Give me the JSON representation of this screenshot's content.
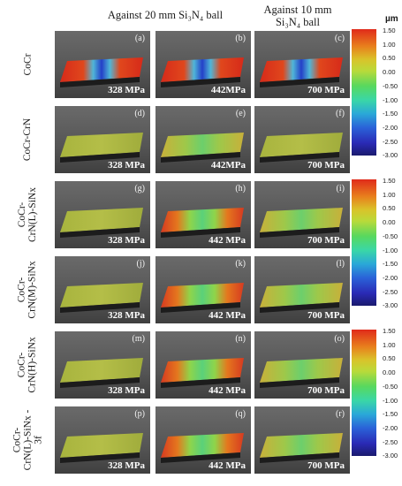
{
  "headers": {
    "col1": "Against 20 mm Si₃N₄ ball",
    "col2_line1": "Against 10 mm",
    "col2_line2": "Si₃N₄ ball"
  },
  "unit": "µm",
  "rows": [
    {
      "label_lines": [
        "CoCr"
      ]
    },
    {
      "label_lines": [
        "CoCr-CrN"
      ]
    },
    {
      "label_lines": [
        "CoCr-",
        "CrN(L)-SiNx"
      ]
    },
    {
      "label_lines": [
        "CoCr-",
        "CrN(M)-SiNx"
      ]
    },
    {
      "label_lines": [
        "CoCr-",
        "CrN(H)-SiNx"
      ]
    },
    {
      "label_lines": [
        "CoCr-",
        "CrN(L)-SiNx -",
        "3f"
      ]
    }
  ],
  "panels": [
    {
      "tag": "(a)",
      "pressure": "328 MPa"
    },
    {
      "tag": "(b)",
      "pressure": "442MPa"
    },
    {
      "tag": "(c)",
      "pressure": "700 MPa"
    },
    {
      "tag": "(d)",
      "pressure": "328 MPa"
    },
    {
      "tag": "(e)",
      "pressure": "442MPa"
    },
    {
      "tag": "(f)",
      "pressure": "700 MPa"
    },
    {
      "tag": "(g)",
      "pressure": "328 MPa"
    },
    {
      "tag": "(h)",
      "pressure": "442 MPa"
    },
    {
      "tag": "(i)",
      "pressure": "700 MPa"
    },
    {
      "tag": "(j)",
      "pressure": "328 MPa"
    },
    {
      "tag": "(k)",
      "pressure": "442 MPa"
    },
    {
      "tag": "(l)",
      "pressure": "700 MPa"
    },
    {
      "tag": "(m)",
      "pressure": "328 MPa"
    },
    {
      "tag": "(n)",
      "pressure": "442 MPa"
    },
    {
      "tag": "(o)",
      "pressure": "700 MPa"
    },
    {
      "tag": "(p)",
      "pressure": "328 MPa"
    },
    {
      "tag": "(q)",
      "pressure": "442 MPa"
    },
    {
      "tag": "(r)",
      "pressure": "700 MPa"
    }
  ],
  "colorbar_ticks": [
    "1.50",
    "1.00",
    "0.50",
    "0.00",
    "-0.50",
    "-1.00",
    "-1.50",
    "-2.00",
    "-2.50",
    "-3.00"
  ]
}
